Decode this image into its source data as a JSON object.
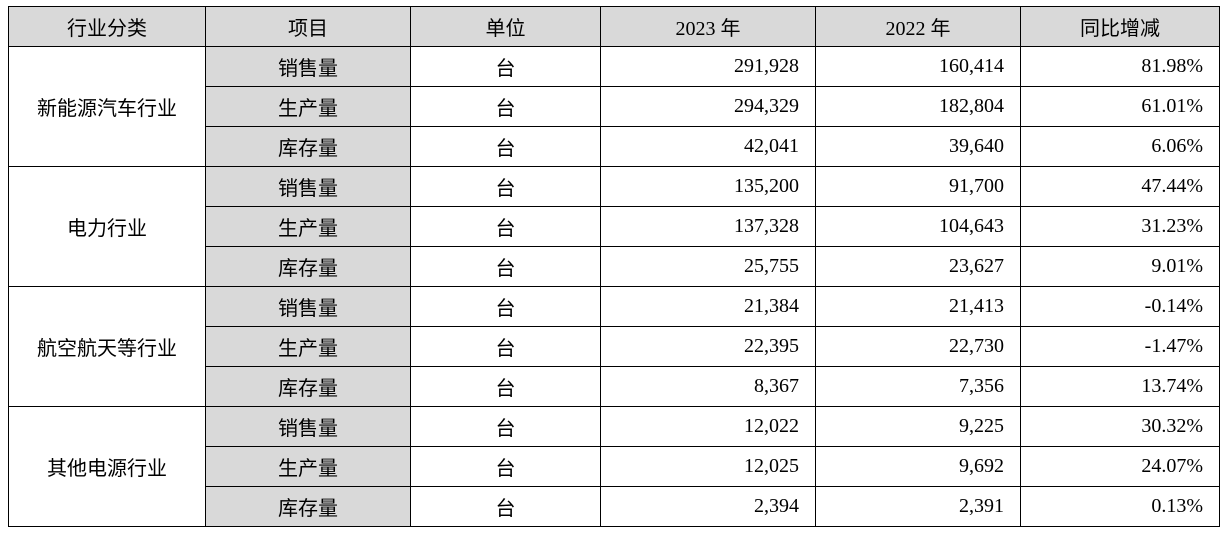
{
  "table": {
    "headers": [
      "行业分类",
      "项目",
      "单位",
      "2023 年",
      "2022 年",
      "同比增减"
    ],
    "groups": [
      {
        "category": "新能源汽车行业",
        "rows": [
          {
            "item": "销售量",
            "unit": "台",
            "y2023": "291,928",
            "y2022": "160,414",
            "yoy": "81.98%"
          },
          {
            "item": "生产量",
            "unit": "台",
            "y2023": "294,329",
            "y2022": "182,804",
            "yoy": "61.01%"
          },
          {
            "item": "库存量",
            "unit": "台",
            "y2023": "42,041",
            "y2022": "39,640",
            "yoy": "6.06%"
          }
        ]
      },
      {
        "category": "电力行业",
        "rows": [
          {
            "item": "销售量",
            "unit": "台",
            "y2023": "135,200",
            "y2022": "91,700",
            "yoy": "47.44%"
          },
          {
            "item": "生产量",
            "unit": "台",
            "y2023": "137,328",
            "y2022": "104,643",
            "yoy": "31.23%"
          },
          {
            "item": "库存量",
            "unit": "台",
            "y2023": "25,755",
            "y2022": "23,627",
            "yoy": "9.01%"
          }
        ]
      },
      {
        "category": "航空航天等行业",
        "rows": [
          {
            "item": "销售量",
            "unit": "台",
            "y2023": "21,384",
            "y2022": "21,413",
            "yoy": "-0.14%"
          },
          {
            "item": "生产量",
            "unit": "台",
            "y2023": "22,395",
            "y2022": "22,730",
            "yoy": "-1.47%"
          },
          {
            "item": "库存量",
            "unit": "台",
            "y2023": "8,367",
            "y2022": "7,356",
            "yoy": "13.74%"
          }
        ]
      },
      {
        "category": "其他电源行业",
        "rows": [
          {
            "item": "销售量",
            "unit": "台",
            "y2023": "12,022",
            "y2022": "9,225",
            "yoy": "30.32%"
          },
          {
            "item": "生产量",
            "unit": "台",
            "y2023": "12,025",
            "y2022": "9,692",
            "yoy": "24.07%"
          },
          {
            "item": "库存量",
            "unit": "台",
            "y2023": "2,394",
            "y2022": "2,391",
            "yoy": "0.13%"
          }
        ]
      }
    ],
    "colors": {
      "header_bg": "#d9d9d9",
      "item_column_bg": "#d9d9d9",
      "border": "#000000"
    }
  }
}
